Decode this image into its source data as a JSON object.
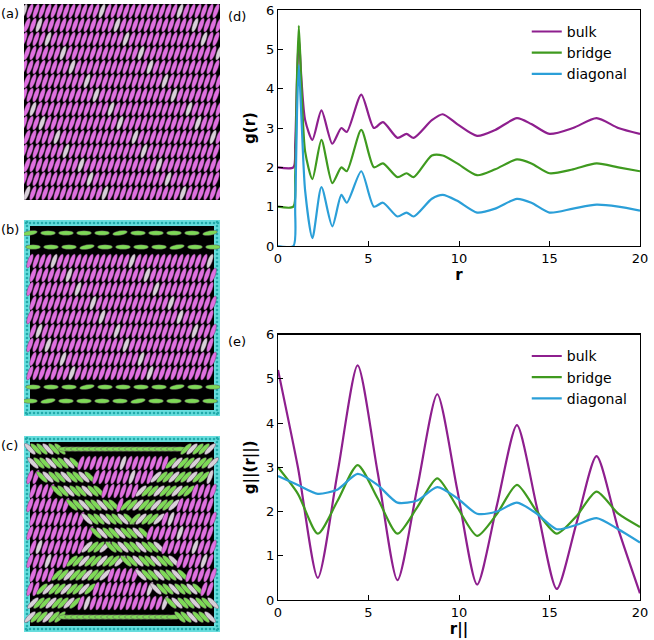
{
  "snapshots": [
    "(a)",
    "(b)",
    "(c)"
  ],
  "chart_data": [
    {
      "panel": "(d)",
      "type": "line",
      "x_label": "r",
      "y_label": "g(r)",
      "xlim": [
        0,
        20
      ],
      "xticks": [
        0,
        5,
        10,
        15,
        20
      ],
      "ylim": [
        0,
        6
      ],
      "yticks": [
        0,
        1,
        2,
        3,
        4,
        5,
        6
      ],
      "grid": false,
      "legend": "top right",
      "x": [
        0,
        0.85,
        0.95,
        1.05,
        1.15,
        1.3,
        1.5,
        1.9,
        2.4,
        3.0,
        3.5,
        3.8,
        4.6,
        5.3,
        5.8,
        6.6,
        7.1,
        7.5,
        8.5,
        9.1,
        9.9,
        11,
        12,
        13.2,
        14,
        15,
        16.3,
        17.6,
        18.8,
        20
      ],
      "series": [
        {
          "name": "bulk",
          "color": "#8e1f8e",
          "values": [
            2,
            2,
            2.6,
            4.2,
            5.3,
            4.2,
            3.2,
            2.7,
            3.45,
            2.6,
            3.0,
            2.9,
            3.85,
            3.0,
            3.15,
            2.75,
            2.85,
            2.75,
            3.2,
            3.35,
            3.1,
            2.8,
            2.95,
            3.25,
            3.1,
            2.85,
            3.0,
            3.25,
            3.0,
            2.85
          ]
        },
        {
          "name": "bridge",
          "color": "#3f9a1f",
          "values": [
            1,
            1,
            1.8,
            4.3,
            5.6,
            4.0,
            2.4,
            1.7,
            2.7,
            1.6,
            2.0,
            1.9,
            2.95,
            2.0,
            2.1,
            1.75,
            1.85,
            1.75,
            2.3,
            2.3,
            2.1,
            1.8,
            1.95,
            2.2,
            2.1,
            1.85,
            1.95,
            2.1,
            2.0,
            1.9
          ]
        },
        {
          "name": "diagonal",
          "color": "#2b9fd8",
          "values": [
            0,
            0,
            1.0,
            3.4,
            4.6,
            3.2,
            1.4,
            0.2,
            1.5,
            0.5,
            1.3,
            1.1,
            1.9,
            1.0,
            1.1,
            0.75,
            0.85,
            0.75,
            1.2,
            1.3,
            1.15,
            0.85,
            0.95,
            1.2,
            1.1,
            0.85,
            0.95,
            1.05,
            1.0,
            0.9
          ]
        }
      ]
    },
    {
      "panel": "(e)",
      "type": "line",
      "x_label": "r||",
      "y_label": "g||(r||)",
      "xlim": [
        0,
        20
      ],
      "xticks": [
        0,
        5,
        10,
        15,
        20
      ],
      "ylim": [
        0,
        6
      ],
      "yticks": [
        0,
        1,
        2,
        3,
        4,
        5,
        6
      ],
      "grid": false,
      "legend": "top right",
      "x": [
        0,
        1.1,
        2.2,
        3.3,
        4.4,
        5.5,
        6.6,
        7.7,
        8.8,
        9.9,
        11,
        12.1,
        13.2,
        14.3,
        15.4,
        16.5,
        17.6,
        18.8,
        20
      ],
      "series": [
        {
          "name": "bulk",
          "color": "#8e1f8e",
          "values": [
            5.2,
            3.0,
            0.5,
            2.9,
            5.3,
            2.9,
            0.45,
            2.55,
            4.65,
            2.5,
            0.35,
            2.15,
            3.95,
            2.1,
            0.25,
            1.75,
            3.25,
            1.6,
            0.15
          ]
        },
        {
          "name": "bridge",
          "color": "#3f9a1f",
          "values": [
            3.0,
            2.4,
            1.5,
            2.25,
            3.05,
            2.3,
            1.5,
            2.1,
            2.75,
            2.1,
            1.45,
            1.95,
            2.6,
            2.0,
            1.5,
            1.9,
            2.45,
            1.95,
            1.65
          ]
        },
        {
          "name": "diagonal",
          "color": "#2b9fd8",
          "values": [
            2.8,
            2.6,
            2.4,
            2.5,
            2.85,
            2.6,
            2.2,
            2.25,
            2.55,
            2.3,
            1.95,
            2.0,
            2.2,
            1.95,
            1.6,
            1.7,
            1.85,
            1.6,
            1.3
          ]
        }
      ]
    }
  ]
}
